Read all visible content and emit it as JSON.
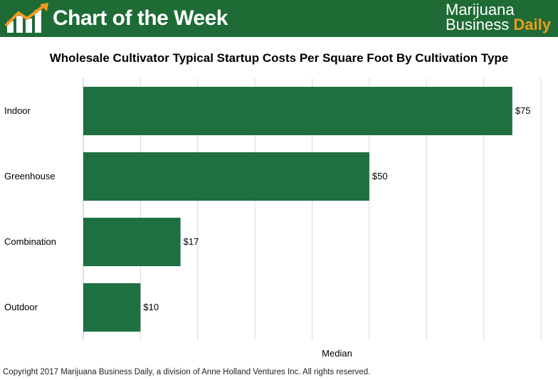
{
  "banner": {
    "title": "Chart of the Week",
    "brand_line1": "Marijuana",
    "brand_line2_a": "Business",
    "brand_line2_b": "Daily",
    "background_color": "#1e6b36",
    "accent_color": "#f39a1e",
    "icon": "rising-bar-chart-icon"
  },
  "chart_data": {
    "type": "bar",
    "orientation": "horizontal",
    "title": "Wholesale Cultivator Typical Startup Costs Per Square Foot By Cultivation Type",
    "categories": [
      "Indoor",
      "Greenhouse",
      "Combination",
      "Outdoor"
    ],
    "series": [
      {
        "name": "Median",
        "values": [
          75,
          50,
          17,
          10
        ],
        "labels": [
          "$75",
          "$50",
          "$17",
          "$10"
        ]
      }
    ],
    "xlabel": "Median",
    "ylabel": "",
    "xlim": [
      0,
      80
    ],
    "grid": true,
    "bar_color": "#1e7040"
  },
  "footer": {
    "copyright": "Copyright 2017 Marijuana Business Daily, a division of Anne Holland Ventures Inc. All rights reserved."
  }
}
